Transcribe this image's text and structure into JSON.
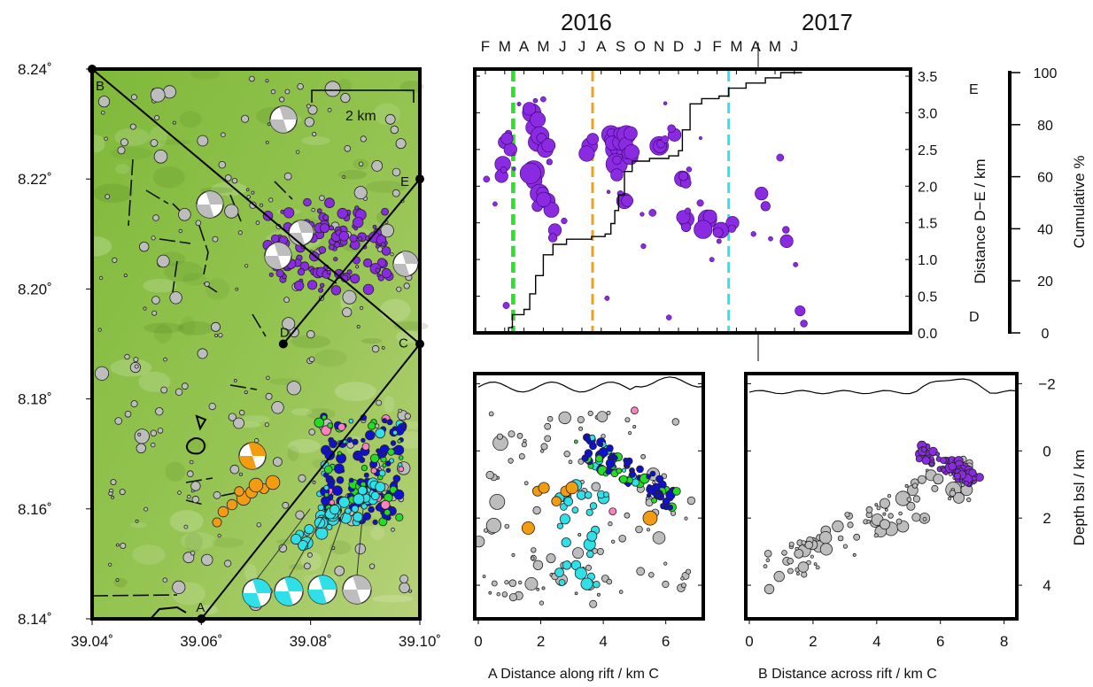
{
  "colors": {
    "map_green": "#8fc04a",
    "purple": "#8a2be2",
    "orange": "#f39c12",
    "blue": "#1010d0",
    "cyan": "#30e0e8",
    "green": "#22dd22",
    "pink": "#ff80c0",
    "grey": "#bdbdbd",
    "line_green": "#33dd33",
    "line_orange": "#f0a020",
    "line_cyan": "#33e0ee"
  },
  "chart_data": [
    {
      "type": "map",
      "xlabel_ticks": [
        "39.04˚",
        "39.06˚",
        "39.08˚",
        "39.10˚"
      ],
      "x": [
        39.04,
        39.06,
        39.08,
        39.1
      ],
      "ylabel_ticks": [
        "8.14˚",
        "8.16˚",
        "8.18˚",
        "8.20˚",
        "8.22˚",
        "8.24˚"
      ],
      "y": [
        8.14,
        8.16,
        8.18,
        8.2,
        8.22,
        8.24
      ],
      "xlim": [
        39.04,
        39.1
      ],
      "ylim": [
        8.14,
        8.24
      ],
      "scalebar": "2 km",
      "points_labeled": [
        {
          "label": "A",
          "lon": 39.06,
          "lat": 8.14
        },
        {
          "label": "B",
          "lon": 39.04,
          "lat": 8.24
        },
        {
          "label": "C",
          "lon": 39.1,
          "lat": 8.19
        },
        {
          "label": "D",
          "lon": 39.075,
          "lat": 8.19
        },
        {
          "label": "E",
          "lon": 39.1,
          "lat": 8.22
        }
      ],
      "profiles": [
        {
          "from": "A",
          "to": "C"
        },
        {
          "from": "B",
          "to": "C"
        },
        {
          "from": "D",
          "to": "E"
        }
      ]
    },
    {
      "type": "scatter",
      "top_axis_years": [
        "2016",
        "2017"
      ],
      "months": [
        "F",
        "M",
        "A",
        "M",
        "J",
        "J",
        "A",
        "S",
        "O",
        "N",
        "D",
        "J",
        "F",
        "M",
        "A",
        "M",
        "J"
      ],
      "ylabel": "Distance D−E / km",
      "y_end_labels": {
        "bottom": "D",
        "top": "E"
      },
      "y_ticks": [
        "0.0",
        "0.5",
        "1.0",
        "1.5",
        "2.0",
        "2.5",
        "3.0",
        "3.5"
      ],
      "ylim": [
        0,
        3.5
      ],
      "right_axis_label": "Cumulative %",
      "right_ticks": [
        "0",
        "20",
        "40",
        "60",
        "80",
        "100"
      ],
      "vlines": [
        {
          "x_month_index": 1.4,
          "color": "green"
        },
        {
          "x_month_index": 1.48,
          "color": "green"
        },
        {
          "x_month_index": 5.55,
          "color": "orange"
        },
        {
          "x_month_index": 12.6,
          "color": "cyan"
        }
      ],
      "cumulative_curve": [
        [
          0.85,
          0
        ],
        [
          1.2,
          2
        ],
        [
          1.4,
          7
        ],
        [
          2.0,
          9
        ],
        [
          2.3,
          15
        ],
        [
          2.6,
          22
        ],
        [
          3.0,
          30
        ],
        [
          3.5,
          34
        ],
        [
          4.2,
          36
        ],
        [
          5.5,
          37
        ],
        [
          6.2,
          38
        ],
        [
          6.5,
          42
        ],
        [
          6.7,
          47
        ],
        [
          6.9,
          53
        ],
        [
          7.2,
          62
        ],
        [
          7.6,
          66
        ],
        [
          8.5,
          67
        ],
        [
          9.5,
          68
        ],
        [
          10.0,
          70
        ],
        [
          10.2,
          78
        ],
        [
          10.6,
          88
        ],
        [
          11.2,
          90
        ],
        [
          12.1,
          91
        ],
        [
          12.6,
          94
        ],
        [
          13.5,
          96
        ],
        [
          14.5,
          98
        ],
        [
          15.3,
          100
        ],
        [
          16.4,
          100
        ]
      ],
      "series": [
        {
          "name": "",
          "x": [
            0.9,
            1.0,
            1.3,
            2.4,
            2.5,
            2.5,
            2.7,
            2.8,
            3.1,
            3.2,
            3.6,
            5.4,
            6.5,
            6.7,
            6.8,
            7.0,
            7.2,
            7.3,
            7.5,
            9.0,
            9.8,
            10.2,
            10.4,
            11.5,
            12.2,
            12.8,
            14.3,
            15.6,
            16.3
          ],
          "y": [
            2.3,
            2.6,
            2.5,
            3.0,
            2.8,
            2.2,
            2.6,
            1.9,
            2.5,
            1.8,
            1.4,
            2.55,
            2.7,
            2.5,
            2.3,
            2.6,
            1.8,
            2.7,
            2.4,
            2.55,
            2.7,
            2.1,
            1.55,
            1.55,
            1.4,
            1.5,
            1.9,
            1.25,
            0.3
          ],
          "size": [
            4,
            3,
            3,
            5,
            4,
            6,
            5,
            5,
            4,
            4,
            3,
            4,
            5,
            5,
            6,
            4,
            4,
            5,
            4,
            5,
            3,
            4,
            4,
            5,
            4,
            3,
            3,
            3,
            2
          ]
        }
      ]
    },
    {
      "type": "scatter",
      "xlabel": "A  Distance along rift  / km  C",
      "x_ticks": [
        "0",
        "2",
        "4",
        "6"
      ],
      "xlim": [
        0,
        7.2
      ],
      "ylim": [
        -2.3,
        5
      ]
    },
    {
      "type": "scatter",
      "xlabel": "B   Distance across rift / km   C",
      "x_ticks": [
        "0",
        "2",
        "4",
        "6",
        "8"
      ],
      "xlim": [
        0,
        8.4
      ],
      "ylabel": "Depth bsl / km",
      "y_ticks": [
        "−2",
        "0",
        "2",
        "4"
      ],
      "ylim": [
        -2.3,
        5
      ]
    }
  ]
}
